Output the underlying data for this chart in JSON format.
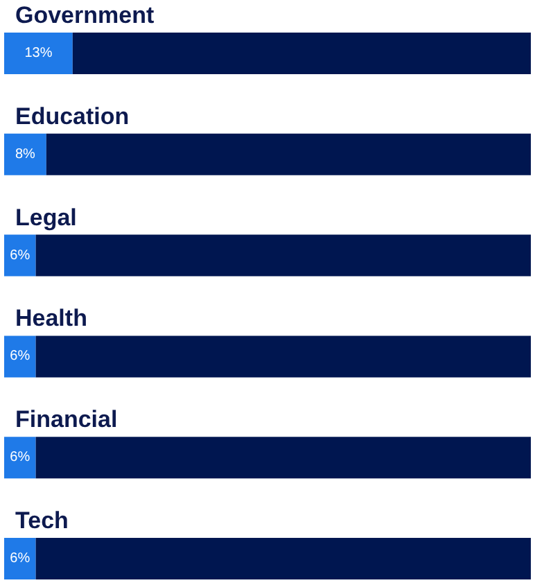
{
  "chart_data": {
    "type": "bar",
    "orientation": "horizontal",
    "stacked": true,
    "categories": [
      "Government",
      "Education",
      "Legal",
      "Health",
      "Financial",
      "Tech"
    ],
    "series": [
      {
        "color": "#1f7ae8",
        "values": [
          13,
          8,
          6,
          6,
          6,
          6
        ],
        "value_labels": [
          "13%",
          "8%",
          "6%",
          "6%",
          "6%",
          "6%"
        ]
      },
      {
        "color": "#001650",
        "values": [
          87,
          92,
          94,
          94,
          94,
          94
        ]
      }
    ],
    "xlim": [
      0,
      100
    ],
    "tick_labels": "y"
  }
}
